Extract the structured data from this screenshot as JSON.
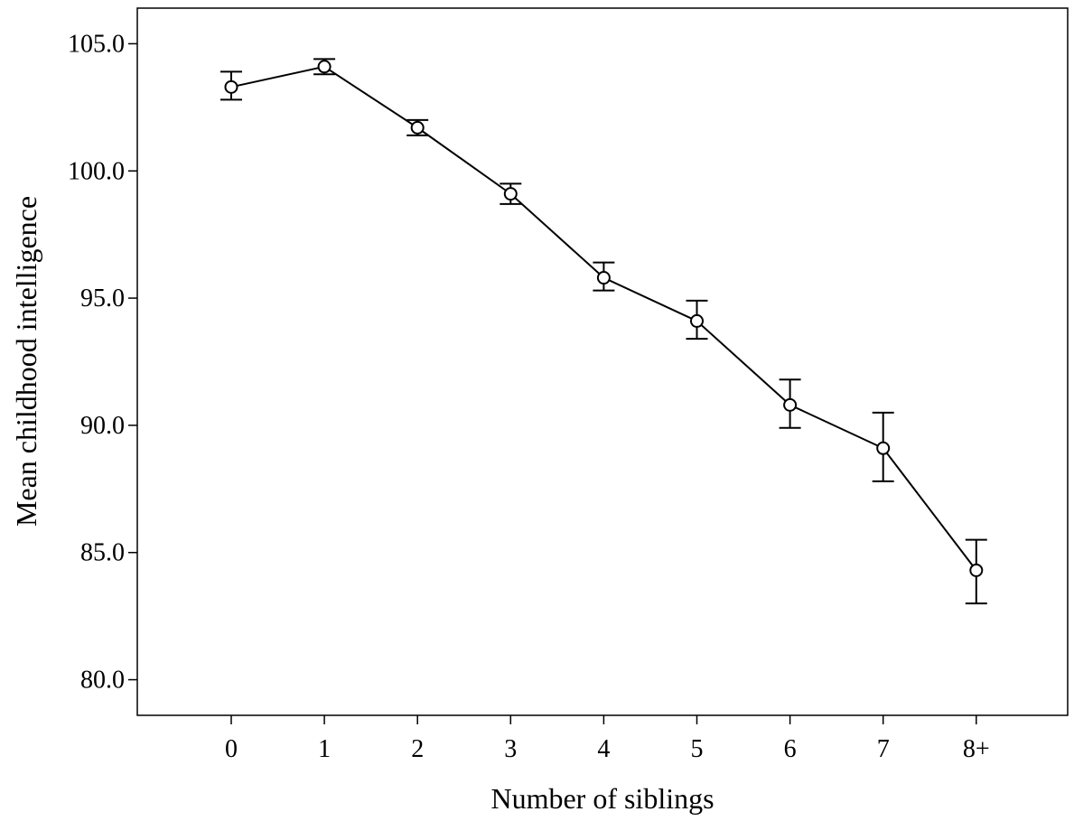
{
  "chart_data": {
    "type": "line",
    "xlabel": "Number of siblings",
    "ylabel": "Mean childhood intelligence",
    "categories": [
      "0",
      "1",
      "2",
      "3",
      "4",
      "5",
      "6",
      "7",
      "8+"
    ],
    "ylim": [
      78.6,
      106.4
    ],
    "yticks": [
      "80.0",
      "85.0",
      "90.0",
      "95.0",
      "100.0",
      "105.0"
    ],
    "grid": false,
    "series": [
      {
        "values": [
          103.3,
          104.1,
          101.7,
          99.1,
          95.8,
          94.1,
          90.8,
          89.1,
          84.3
        ],
        "error_low": [
          102.8,
          103.8,
          101.4,
          98.7,
          95.3,
          93.4,
          89.9,
          87.8,
          83.0
        ],
        "error_high": [
          103.9,
          104.4,
          102.0,
          99.5,
          96.4,
          94.9,
          91.8,
          90.5,
          85.5
        ]
      }
    ],
    "marker": "open-circle",
    "line_color": "#000000"
  }
}
